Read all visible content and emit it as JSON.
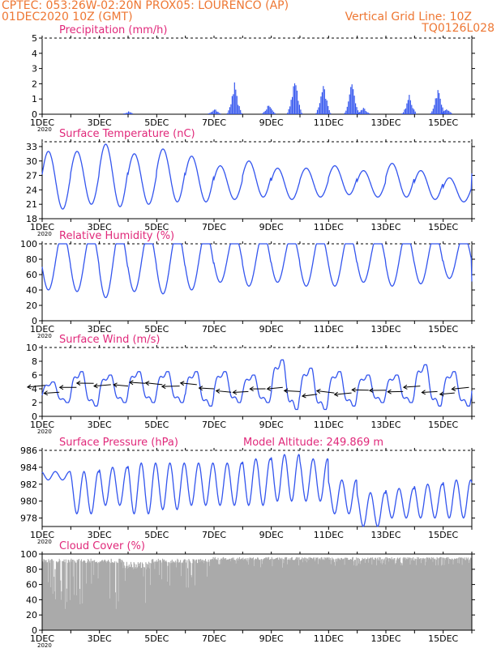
{
  "header": {
    "line1": "CPTEC:   053:26W-02:20N   PROX05: LOURENCO (AP)",
    "line2": "01DEC2020 10Z (GMT)",
    "grid_note": "Vertical Grid Line: 10Z",
    "code": "TQ0126L028"
  },
  "colors": {
    "header_orange": "#ee7733",
    "title_magenta": "#e0287a",
    "line_blue": "#3355ee",
    "cloud_gray": "#aaaaaa",
    "wind_arrow": "#000000"
  },
  "x_axis": {
    "tick_labels": [
      "1DEC",
      "3DEC",
      "5DEC",
      "7DEC",
      "9DEC",
      "11DEC",
      "13DEC",
      "15DEC"
    ],
    "tick_days": [
      1,
      3,
      5,
      7,
      9,
      11,
      13,
      15
    ],
    "range_days": [
      1,
      16
    ],
    "year_fragment": "2020"
  },
  "chart_data": [
    {
      "type": "bar",
      "title": "Precipitation (mm/h)",
      "ylim": [
        0,
        5
      ],
      "yticks": [
        0,
        1,
        2,
        3,
        4,
        5
      ],
      "grid": false,
      "events": [
        {
          "day": 4.0,
          "max": 0.2
        },
        {
          "day": 7.0,
          "max": 0.4
        },
        {
          "day": 7.7,
          "max": 2.1
        },
        {
          "day": 8.9,
          "max": 0.7
        },
        {
          "day": 9.8,
          "max": 2.7
        },
        {
          "day": 10.8,
          "max": 2.4
        },
        {
          "day": 11.8,
          "max": 2.3
        },
        {
          "day": 12.2,
          "max": 0.5
        },
        {
          "day": 13.8,
          "max": 1.3
        },
        {
          "day": 14.8,
          "max": 1.9
        },
        {
          "day": 15.1,
          "max": 0.4
        }
      ]
    },
    {
      "type": "line",
      "title": "Surface Temperature (nC)",
      "ylim": [
        18,
        34
      ],
      "yticks": [
        18,
        21,
        24,
        27,
        30,
        33
      ],
      "daily": [
        {
          "min": 20.0,
          "max": 32.0
        },
        {
          "min": 21.0,
          "max": 32.0
        },
        {
          "min": 20.5,
          "max": 33.5
        },
        {
          "min": 21.0,
          "max": 31.5
        },
        {
          "min": 21.5,
          "max": 32.5
        },
        {
          "min": 21.5,
          "max": 31.0
        },
        {
          "min": 22.0,
          "max": 29.0
        },
        {
          "min": 22.5,
          "max": 30.0
        },
        {
          "min": 22.0,
          "max": 28.5
        },
        {
          "min": 22.5,
          "max": 28.5
        },
        {
          "min": 23.0,
          "max": 29.0
        },
        {
          "min": 22.5,
          "max": 28.0
        },
        {
          "min": 22.5,
          "max": 29.5
        },
        {
          "min": 22.0,
          "max": 28.0
        },
        {
          "min": 21.5,
          "max": 26.5
        },
        {
          "min": 22.0,
          "max": 31.0
        }
      ]
    },
    {
      "type": "line",
      "title": "Relative Humidity (%)",
      "ylim": [
        0,
        100
      ],
      "yticks": [
        0,
        20,
        40,
        60,
        80,
        100
      ],
      "daily": [
        {
          "min": 40,
          "max": 100
        },
        {
          "min": 38,
          "max": 100
        },
        {
          "min": 30,
          "max": 100
        },
        {
          "min": 38,
          "max": 100
        },
        {
          "min": 35,
          "max": 100
        },
        {
          "min": 40,
          "max": 100
        },
        {
          "min": 50,
          "max": 100
        },
        {
          "min": 45,
          "max": 100
        },
        {
          "min": 50,
          "max": 100
        },
        {
          "min": 45,
          "max": 100
        },
        {
          "min": 45,
          "max": 100
        },
        {
          "min": 50,
          "max": 100
        },
        {
          "min": 45,
          "max": 100
        },
        {
          "min": 48,
          "max": 100
        },
        {
          "min": 55,
          "max": 100
        },
        {
          "min": 40,
          "max": 62
        }
      ]
    },
    {
      "type": "line",
      "title": "Surface Wind (m/s)",
      "ylim": [
        0,
        10
      ],
      "yticks": [
        0,
        2,
        4,
        6,
        8,
        10
      ],
      "daily": [
        {
          "min": 2.0,
          "max": 5.0
        },
        {
          "min": 1.5,
          "max": 6.5
        },
        {
          "min": 2.0,
          "max": 6.0
        },
        {
          "min": 2.0,
          "max": 6.5
        },
        {
          "min": 2.0,
          "max": 6.5
        },
        {
          "min": 1.5,
          "max": 6.5
        },
        {
          "min": 2.0,
          "max": 6.5
        },
        {
          "min": 2.0,
          "max": 6.0
        },
        {
          "min": 1.0,
          "max": 8.2
        },
        {
          "min": 1.0,
          "max": 7.0
        },
        {
          "min": 1.5,
          "max": 6.5
        },
        {
          "min": 2.0,
          "max": 6.0
        },
        {
          "min": 2.0,
          "max": 6.0
        },
        {
          "min": 1.5,
          "max": 7.5
        },
        {
          "min": 1.5,
          "max": 6.5
        },
        {
          "min": 3.0,
          "max": 5.0
        }
      ],
      "wind_vectors": [
        {
          "day": 1.1,
          "speed": 4.5
        },
        {
          "day": 1.6,
          "speed": 3.5
        },
        {
          "day": 2.2,
          "speed": 4.2
        },
        {
          "day": 2.8,
          "speed": 4.8
        },
        {
          "day": 3.4,
          "speed": 4.6
        },
        {
          "day": 4.0,
          "speed": 4.4
        },
        {
          "day": 4.6,
          "speed": 4.8
        },
        {
          "day": 5.2,
          "speed": 4.6
        },
        {
          "day": 5.8,
          "speed": 4.4
        },
        {
          "day": 6.4,
          "speed": 4.6
        },
        {
          "day": 7.0,
          "speed": 4.0
        },
        {
          "day": 7.6,
          "speed": 3.5
        },
        {
          "day": 8.2,
          "speed": 3.6
        },
        {
          "day": 8.8,
          "speed": 4.0
        },
        {
          "day": 9.4,
          "speed": 4.2
        },
        {
          "day": 10.0,
          "speed": 3.6
        },
        {
          "day": 10.6,
          "speed": 3.2
        },
        {
          "day": 11.2,
          "speed": 3.4
        },
        {
          "day": 11.8,
          "speed": 3.4
        },
        {
          "day": 12.4,
          "speed": 3.8
        },
        {
          "day": 13.0,
          "speed": 3.8
        },
        {
          "day": 13.6,
          "speed": 3.6
        },
        {
          "day": 14.2,
          "speed": 4.4
        },
        {
          "day": 14.8,
          "speed": 3.6
        },
        {
          "day": 15.4,
          "speed": 3.4
        },
        {
          "day": 15.9,
          "speed": 4.2
        }
      ]
    },
    {
      "type": "line",
      "title": "Surface Pressure (hPa)",
      "annotation": "Model Altitude: 249.869 m",
      "ylim": [
        977,
        986
      ],
      "yticks": [
        978,
        980,
        982,
        984,
        986
      ],
      "daily": [
        {
          "min": 982.5,
          "max": 983.5
        },
        {
          "min": 978.5,
          "max": 983.5
        },
        {
          "min": 979.5,
          "max": 984.0
        },
        {
          "min": 978.5,
          "max": 984.5
        },
        {
          "min": 979.0,
          "max": 984.5
        },
        {
          "min": 979.5,
          "max": 984.5
        },
        {
          "min": 979.5,
          "max": 984.5
        },
        {
          "min": 979.5,
          "max": 985.0
        },
        {
          "min": 980.0,
          "max": 985.5
        },
        {
          "min": 980.0,
          "max": 985.0
        },
        {
          "min": 978.5,
          "max": 982.5
        },
        {
          "min": 977.0,
          "max": 981.0
        },
        {
          "min": 978.0,
          "max": 981.5
        },
        {
          "min": 978.0,
          "max": 982.0
        },
        {
          "min": 978.0,
          "max": 982.5
        },
        {
          "min": 977.5,
          "max": 982.5
        }
      ]
    },
    {
      "type": "area",
      "title": "Cloud Cover (%)",
      "ylim": [
        0,
        100
      ],
      "yticks": [
        0,
        20,
        40,
        60,
        80,
        100
      ],
      "segments": [
        {
          "from": 1.0,
          "to": 3.8,
          "base": 88,
          "dip_min": 25
        },
        {
          "from": 3.8,
          "to": 4.8,
          "base": 80,
          "dip_min": 20
        },
        {
          "from": 4.8,
          "to": 6.9,
          "base": 88,
          "dip_min": 50
        },
        {
          "from": 6.9,
          "to": 10.0,
          "base": 92,
          "dip_min": 82
        },
        {
          "from": 10.0,
          "to": 16.0,
          "base": 92,
          "dip_min": 84
        }
      ]
    }
  ]
}
